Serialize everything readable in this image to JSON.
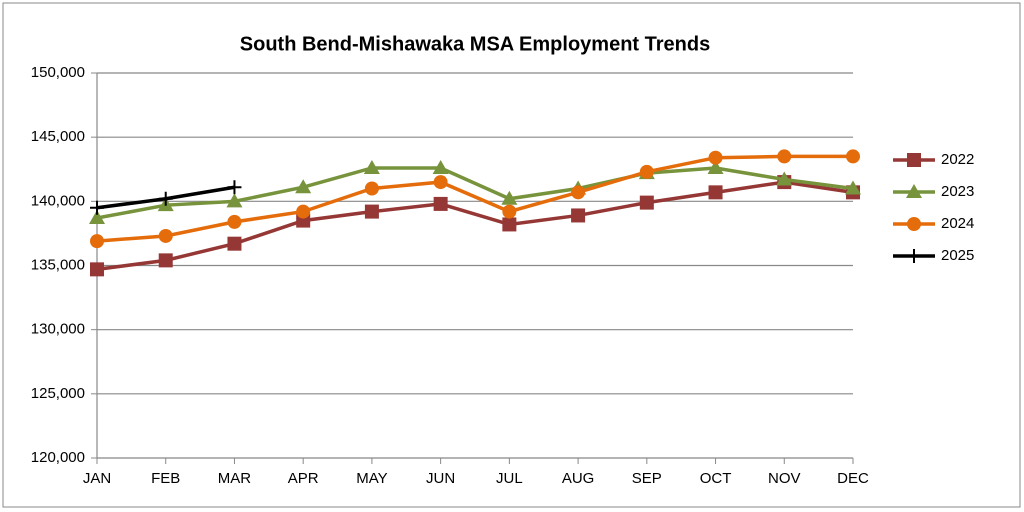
{
  "chart_data": {
    "type": "line",
    "title": "South Bend-Mishawaka MSA Employment Trends",
    "categories": [
      "JAN",
      "FEB",
      "MAR",
      "APR",
      "MAY",
      "JUN",
      "JUL",
      "AUG",
      "SEP",
      "OCT",
      "NOV",
      "DEC"
    ],
    "series": [
      {
        "name": "2022",
        "color": "#953735",
        "marker": "square",
        "values": [
          134700,
          135400,
          136700,
          138500,
          139200,
          139800,
          138200,
          138900,
          139900,
          140700,
          141500,
          140700
        ]
      },
      {
        "name": "2023",
        "color": "#77933c",
        "marker": "triangle",
        "values": [
          138700,
          139700,
          140000,
          141100,
          142600,
          142600,
          140200,
          141000,
          142200,
          142600,
          141700,
          141000
        ]
      },
      {
        "name": "2024",
        "color": "#e46c0a",
        "marker": "circle",
        "values": [
          136900,
          137300,
          138400,
          139200,
          141000,
          141500,
          139200,
          140700,
          142300,
          143400,
          143500,
          143500
        ]
      },
      {
        "name": "2025",
        "color": "#000000",
        "marker": "plus",
        "values": [
          139500,
          140200,
          141100,
          null,
          null,
          null,
          null,
          null,
          null,
          null,
          null,
          null
        ]
      }
    ],
    "ylim": [
      120000,
      150000
    ],
    "yticks": [
      {
        "value": 120000,
        "label": "120,000"
      },
      {
        "value": 125000,
        "label": "125,000"
      },
      {
        "value": 130000,
        "label": "130,000"
      },
      {
        "value": 135000,
        "label": "135,000"
      },
      {
        "value": 140000,
        "label": "140,000"
      },
      {
        "value": 145000,
        "label": "145,000"
      },
      {
        "value": 150000,
        "label": "150,000"
      }
    ],
    "grid": true,
    "legend": "right"
  }
}
